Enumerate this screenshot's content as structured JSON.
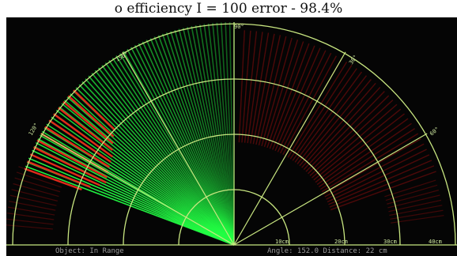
{
  "caption": "o efficiency I = 100 error - 98.4%",
  "radar": {
    "top_label": "90°",
    "angle_labels": [
      "150°",
      "30°",
      "120°",
      "60°"
    ],
    "range_labels": [
      "10cm",
      "20cm",
      "30cm",
      "40cm"
    ],
    "status_left": "Object: In Range",
    "status_right": "Angle: 152.0  Distance: 22 cm",
    "colors": {
      "grid": "#c8e680",
      "sweep": "#22ff44",
      "object": "#e02a1a",
      "dim": "#5a0a0a"
    }
  }
}
